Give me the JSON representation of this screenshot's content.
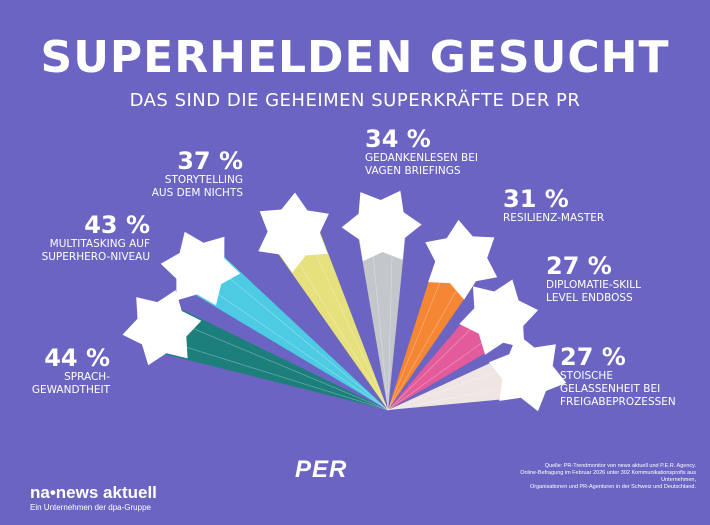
{
  "title": "SUPERHELDEN GESUCHT",
  "subtitle": "DAS SIND DIE GEHEIMEN SUPERKRÄFTE DER PR",
  "chart_data": {
    "type": "bar",
    "categories": [
      "SPRACH-GEWANDTHEIT",
      "MULTITASKING AUF SUPERHERO-NIVEAU",
      "STORYTELLING AUS DEM NICHTS",
      "GEDANKENLESEN BEI VAGEN BRIEFINGS",
      "RESILIENZ-MASTER",
      "DIPLOMATIE-SKILL LEVEL ENDBOSS",
      "STOISCHE GELASSENHEIT BEI FREIGABEPROZESSEN"
    ],
    "values": [
      44,
      43,
      37,
      34,
      31,
      27,
      27
    ],
    "value_labels": [
      "44 %",
      "43 %",
      "37 %",
      "34 %",
      "31 %",
      "27 %",
      "27 %"
    ],
    "label_lines": [
      [
        "SPRACH-",
        "GEWANDTHEIT"
      ],
      [
        "MULTITASKING AUF",
        "SUPERHERO-NIVEAU"
      ],
      [
        "STORYTELLING",
        "AUS DEM NICHTS"
      ],
      [
        "GEDANKENLESEN BEI",
        "VAGEN BRIEFINGS"
      ],
      [
        "RESILIENZ-MASTER"
      ],
      [
        "DIPLOMATIE-SKILL",
        "LEVEL ENDBOSS"
      ],
      [
        "STOISCHE",
        "GELASSENHEIT BEI",
        "FREIGABEPROZESSEN"
      ]
    ],
    "colors": [
      "#1d7f7c",
      "#4ccbe3",
      "#e6e17d",
      "#c3c6cb",
      "#f58634",
      "#e35b9a",
      "#efe6e4"
    ],
    "unit": "%"
  },
  "colors": {
    "background": "#6b64c3",
    "star": "#ffffff"
  },
  "footer": {
    "brand": "na•news aktuell",
    "brand_sub": "Ein Unternehmen der dpa-Gruppe",
    "partner_logo": "PER",
    "source_line1": "Quelle: PR-Trendmonitor von news aktuell und P.E.R. Agency.",
    "source_line2": "Online-Befragung im Februar 2026 unter 302 Kommunikationsprofis aus Unternehmen,",
    "source_line3": "Organisationen und PR-Agenturen in der Schweiz und Deutschland."
  }
}
